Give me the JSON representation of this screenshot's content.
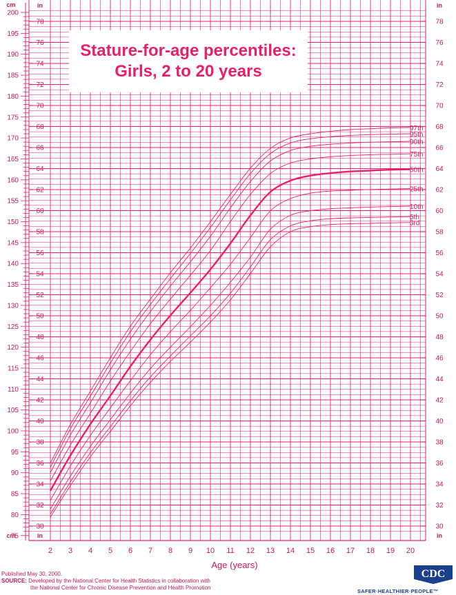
{
  "title": {
    "line1": "Stature-for-age percentiles:",
    "line2": "Girls, 2 to 20 years"
  },
  "units": {
    "cm": "cm",
    "in": "in"
  },
  "footer": {
    "published": "Published May 30, 2000.",
    "source_label": "SOURCE:",
    "source_text": " Developed by the National Center for Health Statistics in collaboration with",
    "source_text2": "the National Center for Chronic Disease Prevention and Health Promotion"
  },
  "logo": {
    "text": "CDC",
    "tagline": "SAFER·HEALTHIER·PEOPLE™"
  },
  "colors": {
    "grid": "#e8206a",
    "curve": "#e8206a",
    "text": "#c2185b"
  },
  "chart_data": {
    "type": "line",
    "title": "Stature-for-age percentiles: Girls, 2 to 20 years",
    "xlabel": "Age (years)",
    "ylabel_left": "cm",
    "ylabel_right": "in",
    "xlim": [
      2,
      20.9
    ],
    "ylim_cm": [
      75,
      200
    ],
    "ylim_in": [
      30,
      78
    ],
    "x_ticks": [
      2,
      3,
      4,
      5,
      6,
      7,
      8,
      9,
      10,
      11,
      12,
      13,
      14,
      15,
      16,
      17,
      18,
      19,
      20
    ],
    "cm_ticks": [
      75,
      80,
      85,
      90,
      95,
      100,
      105,
      110,
      115,
      120,
      125,
      130,
      135,
      140,
      145,
      150,
      155,
      160,
      165,
      170,
      175,
      180,
      185,
      190,
      195,
      200
    ],
    "in_ticks": [
      30,
      32,
      34,
      36,
      38,
      40,
      42,
      44,
      46,
      48,
      50,
      52,
      54,
      56,
      58,
      60,
      62,
      64,
      66,
      68,
      70,
      72,
      74,
      76,
      78
    ],
    "grid": true,
    "ages": [
      2,
      3,
      4,
      5,
      6,
      7,
      8,
      9,
      10,
      11,
      12,
      13,
      14,
      15,
      16,
      17,
      18,
      19,
      20
    ],
    "series": [
      {
        "name": "97th",
        "emphasis": false,
        "values": [
          92.3,
          101.5,
          109.5,
          117.5,
          125.0,
          131.5,
          137.8,
          143.7,
          150.0,
          156.5,
          162.8,
          167.5,
          170.0,
          171.0,
          171.6,
          172.0,
          172.2,
          172.4,
          172.5
        ]
      },
      {
        "name": "95th",
        "emphasis": false,
        "values": [
          91.3,
          100.5,
          108.3,
          116.2,
          123.7,
          130.2,
          136.4,
          142.4,
          148.6,
          155.2,
          161.5,
          166.3,
          168.8,
          169.8,
          170.3,
          170.6,
          170.8,
          170.9,
          171.0
        ]
      },
      {
        "name": "90th",
        "emphasis": false,
        "values": [
          90.0,
          99.0,
          106.7,
          114.6,
          121.9,
          128.5,
          134.6,
          140.4,
          146.5,
          153.3,
          159.6,
          164.5,
          167.0,
          168.0,
          168.5,
          168.8,
          169.0,
          169.1,
          169.2
        ]
      },
      {
        "name": "75th",
        "emphasis": false,
        "values": [
          88.0,
          96.6,
          104.2,
          111.9,
          119.0,
          125.6,
          131.5,
          137.2,
          143.1,
          150.0,
          156.5,
          161.5,
          164.0,
          165.0,
          165.5,
          165.8,
          166.0,
          166.1,
          166.2
        ]
      },
      {
        "name": "50th",
        "emphasis": true,
        "values": [
          85.7,
          94.1,
          101.6,
          108.4,
          115.4,
          121.8,
          127.6,
          133.0,
          138.6,
          144.8,
          151.5,
          157.1,
          159.8,
          161.0,
          161.6,
          162.0,
          162.2,
          162.4,
          162.5
        ]
      },
      {
        "name": "25th",
        "emphasis": false,
        "values": [
          83.4,
          91.6,
          98.9,
          105.5,
          112.0,
          118.2,
          123.7,
          128.8,
          134.2,
          139.8,
          146.2,
          152.6,
          155.5,
          156.8,
          157.3,
          157.5,
          157.7,
          157.8,
          157.9
        ]
      },
      {
        "name": "10th",
        "emphasis": false,
        "values": [
          81.3,
          89.2,
          96.3,
          102.7,
          109.0,
          114.9,
          120.0,
          124.9,
          130.0,
          135.5,
          141.5,
          148.2,
          151.5,
          152.6,
          153.1,
          153.3,
          153.5,
          153.6,
          153.7
        ]
      },
      {
        "name": "5th",
        "emphasis": false,
        "values": [
          80.1,
          87.8,
          94.8,
          101.0,
          107.2,
          112.9,
          117.9,
          122.7,
          127.5,
          132.9,
          139.2,
          145.7,
          149.0,
          150.2,
          150.7,
          150.9,
          151.0,
          151.1,
          151.2
        ]
      },
      {
        "name": "3rd",
        "emphasis": false,
        "values": [
          79.4,
          86.9,
          93.8,
          99.9,
          106.0,
          111.6,
          116.6,
          121.2,
          126.0,
          131.3,
          137.6,
          144.0,
          147.6,
          148.8,
          149.3,
          149.5,
          149.6,
          149.7,
          149.8
        ]
      }
    ]
  }
}
